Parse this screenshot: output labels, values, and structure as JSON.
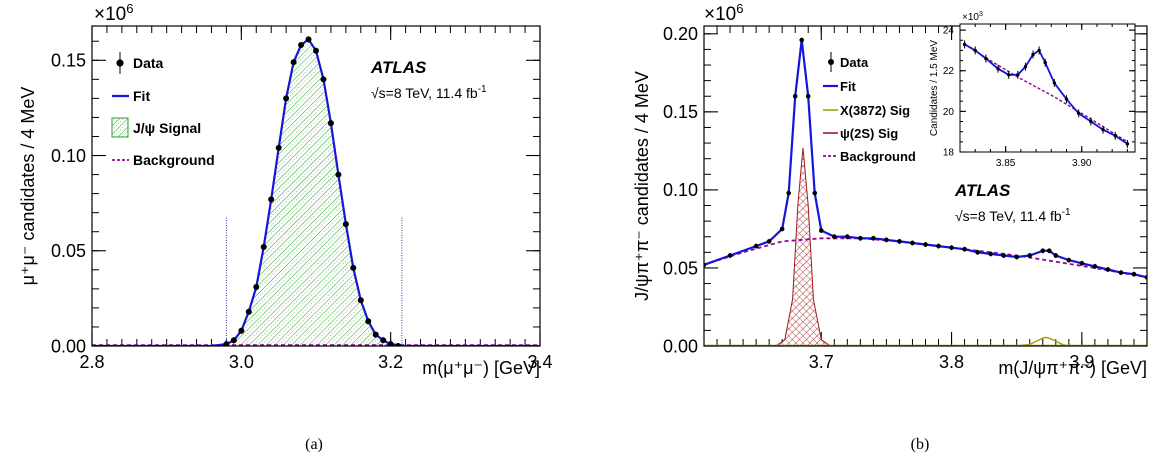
{
  "figure": {
    "panels": [
      {
        "caption": "(a)",
        "exponent_label": "×10",
        "exponent_power": "6",
        "ylabel": "μ⁺μ⁻ candidates / 4 MeV",
        "xlabel": "m(μ⁺μ⁻) [GeV]",
        "atlas": "ATLAS",
        "lumi": "√s=8 TeV, 11.4 fb",
        "lumi_power": "-1",
        "legend": [
          "Data",
          "Fit",
          "J/ψ Signal",
          "Background"
        ]
      },
      {
        "caption": "(b)",
        "exponent_label": "×10",
        "exponent_power": "6",
        "ylabel": "J/ψπ⁺π⁻ candidates / 4 MeV",
        "xlabel": "m(J/ψπ⁺π⁻) [GeV]",
        "atlas": "ATLAS",
        "lumi": "√s=8 TeV, 11.4 fb",
        "lumi_power": "-1",
        "legend": [
          "Data",
          "Fit",
          "X(3872) Sig",
          "ψ(2S) Sig",
          "Background"
        ],
        "inset": {
          "exponent_label": "×10",
          "exponent_power": "3",
          "ylabel": "Candidates / 1.5 MeV",
          "xticks": [
            "3.85",
            "3.90"
          ],
          "yticks": [
            "18",
            "20",
            "22",
            "24"
          ]
        }
      }
    ]
  },
  "colors": {
    "fit": "#1515d9",
    "data": "#000000",
    "signal_jpsi": "#2e9e2e",
    "signal_psi2s": "#a01b1b",
    "signal_x3872": "#a3a300",
    "background": "#990099"
  },
  "chart_data": [
    {
      "type": "line",
      "title": "",
      "xlabel": "m(μ⁺μ⁻) [GeV]",
      "ylabel": "μ⁺μ⁻ candidates / 4 MeV",
      "y_scale_factor": 1000000,
      "xlim": [
        2.8,
        3.4
      ],
      "ylim": [
        0,
        0.168
      ],
      "xticks": [
        "2.8",
        "3.0",
        "3.2",
        "3.4"
      ],
      "yticks": [
        "0.00",
        "0.05",
        "0.10",
        "0.15"
      ],
      "signal_window": [
        2.98,
        3.215
      ],
      "signal_window_line_height": 0.068,
      "series": [
        {
          "name": "Data",
          "x": [
            2.98,
            2.99,
            3.0,
            3.01,
            3.02,
            3.03,
            3.04,
            3.05,
            3.06,
            3.07,
            3.08,
            3.09,
            3.1,
            3.11,
            3.12,
            3.13,
            3.14,
            3.15,
            3.16,
            3.17,
            3.18,
            3.19,
            3.2,
            3.21
          ],
          "y": [
            0.001,
            0.003,
            0.008,
            0.018,
            0.031,
            0.052,
            0.077,
            0.104,
            0.13,
            0.149,
            0.158,
            0.161,
            0.155,
            0.14,
            0.117,
            0.09,
            0.064,
            0.041,
            0.024,
            0.013,
            0.006,
            0.003,
            0.001,
            0.0
          ]
        },
        {
          "name": "Fit",
          "x": [
            2.8,
            2.96,
            2.98,
            2.99,
            3.0,
            3.01,
            3.02,
            3.03,
            3.04,
            3.05,
            3.06,
            3.07,
            3.08,
            3.09,
            3.1,
            3.11,
            3.12,
            3.13,
            3.14,
            3.15,
            3.16,
            3.17,
            3.18,
            3.19,
            3.2,
            3.22,
            3.4
          ],
          "y": [
            0.0,
            0.0,
            0.001,
            0.003,
            0.008,
            0.018,
            0.031,
            0.052,
            0.077,
            0.104,
            0.13,
            0.149,
            0.158,
            0.161,
            0.155,
            0.14,
            0.117,
            0.09,
            0.064,
            0.041,
            0.024,
            0.013,
            0.006,
            0.003,
            0.001,
            0.0,
            0.0
          ]
        },
        {
          "name": "J/ψ Signal",
          "x": [
            2.98,
            2.99,
            3.0,
            3.01,
            3.02,
            3.03,
            3.04,
            3.05,
            3.06,
            3.07,
            3.08,
            3.09,
            3.1,
            3.11,
            3.12,
            3.13,
            3.14,
            3.15,
            3.16,
            3.17,
            3.18,
            3.19,
            3.2,
            3.21
          ],
          "y": [
            0.001,
            0.003,
            0.008,
            0.018,
            0.031,
            0.052,
            0.077,
            0.104,
            0.13,
            0.149,
            0.158,
            0.161,
            0.155,
            0.14,
            0.117,
            0.09,
            0.064,
            0.041,
            0.024,
            0.013,
            0.006,
            0.003,
            0.001,
            0.0
          ]
        },
        {
          "name": "Background",
          "x": [
            2.8,
            3.4
          ],
          "y": [
            0.0,
            0.0
          ]
        }
      ]
    },
    {
      "type": "line",
      "title": "",
      "xlabel": "m(J/ψπ⁺π⁻) [GeV]",
      "ylabel": "J/ψπ⁺π⁻ candidates / 4 MeV",
      "y_scale_factor": 1000000,
      "xlim": [
        3.61,
        3.95
      ],
      "ylim": [
        0,
        0.205
      ],
      "xticks": [
        "3.7",
        "3.8",
        "3.9"
      ],
      "yticks": [
        "0.00",
        "0.05",
        "0.10",
        "0.15",
        "0.20"
      ],
      "series": [
        {
          "name": "Data",
          "x": [
            3.61,
            3.63,
            3.65,
            3.66,
            3.67,
            3.675,
            3.68,
            3.685,
            3.69,
            3.695,
            3.7,
            3.71,
            3.72,
            3.73,
            3.74,
            3.75,
            3.76,
            3.77,
            3.78,
            3.79,
            3.8,
            3.81,
            3.82,
            3.83,
            3.84,
            3.85,
            3.86,
            3.87,
            3.875,
            3.88,
            3.89,
            3.9,
            3.91,
            3.92,
            3.93,
            3.94,
            3.95
          ],
          "y": [
            0.052,
            0.058,
            0.064,
            0.067,
            0.075,
            0.098,
            0.16,
            0.196,
            0.16,
            0.098,
            0.074,
            0.07,
            0.07,
            0.069,
            0.069,
            0.068,
            0.067,
            0.066,
            0.065,
            0.064,
            0.063,
            0.062,
            0.06,
            0.059,
            0.058,
            0.057,
            0.058,
            0.061,
            0.061,
            0.058,
            0.055,
            0.053,
            0.051,
            0.049,
            0.047,
            0.046,
            0.044
          ]
        },
        {
          "name": "Fit",
          "x": [
            3.61,
            3.63,
            3.65,
            3.66,
            3.67,
            3.675,
            3.68,
            3.685,
            3.69,
            3.695,
            3.7,
            3.71,
            3.72,
            3.73,
            3.74,
            3.75,
            3.76,
            3.77,
            3.78,
            3.79,
            3.8,
            3.81,
            3.82,
            3.83,
            3.84,
            3.85,
            3.86,
            3.87,
            3.875,
            3.88,
            3.89,
            3.9,
            3.91,
            3.92,
            3.93,
            3.94,
            3.95
          ],
          "y": [
            0.052,
            0.058,
            0.064,
            0.067,
            0.075,
            0.098,
            0.16,
            0.196,
            0.16,
            0.098,
            0.074,
            0.07,
            0.07,
            0.069,
            0.069,
            0.068,
            0.067,
            0.066,
            0.065,
            0.064,
            0.063,
            0.062,
            0.06,
            0.059,
            0.058,
            0.057,
            0.058,
            0.061,
            0.061,
            0.058,
            0.055,
            0.053,
            0.051,
            0.049,
            0.047,
            0.046,
            0.044
          ]
        },
        {
          "name": "X(3872) Sig",
          "x": [
            3.85,
            3.86,
            3.865,
            3.87,
            3.872,
            3.875,
            3.88,
            3.885,
            3.89
          ],
          "y": [
            0.0,
            0.001,
            0.003,
            0.005,
            0.0055,
            0.005,
            0.003,
            0.001,
            0.0
          ]
        },
        {
          "name": "ψ(2S) Sig",
          "x": [
            3.665,
            3.672,
            3.678,
            3.682,
            3.686,
            3.69,
            3.694,
            3.7,
            3.707
          ],
          "y": [
            0.0,
            0.004,
            0.03,
            0.09,
            0.127,
            0.09,
            0.03,
            0.004,
            0.0
          ]
        },
        {
          "name": "Background",
          "x": [
            3.61,
            3.64,
            3.67,
            3.7,
            3.73,
            3.76,
            3.79,
            3.82,
            3.85,
            3.88,
            3.91,
            3.95
          ],
          "y": [
            0.052,
            0.06,
            0.067,
            0.069,
            0.069,
            0.067,
            0.064,
            0.061,
            0.058,
            0.054,
            0.05,
            0.044
          ]
        }
      ],
      "inset": {
        "type": "line",
        "xlim": [
          3.82,
          3.935
        ],
        "ylim": [
          18,
          24.3
        ],
        "y_scale_factor": 1000,
        "series": [
          {
            "name": "Data",
            "x": [
              3.823,
              3.83,
              3.837,
              3.845,
              3.852,
              3.858,
              3.863,
              3.868,
              3.872,
              3.876,
              3.882,
              3.89,
              3.898,
              3.906,
              3.914,
              3.922,
              3.93
            ],
            "y": [
              23.3,
              23.0,
              22.6,
              22.1,
              21.8,
              21.8,
              22.2,
              22.8,
              23.0,
              22.4,
              21.4,
              20.6,
              19.9,
              19.5,
              19.1,
              18.8,
              18.4
            ]
          },
          {
            "name": "Fit",
            "x": [
              3.823,
              3.83,
              3.837,
              3.845,
              3.852,
              3.858,
              3.863,
              3.868,
              3.872,
              3.876,
              3.882,
              3.89,
              3.898,
              3.906,
              3.914,
              3.922,
              3.93
            ],
            "y": [
              23.3,
              23.0,
              22.6,
              22.1,
              21.8,
              21.8,
              22.2,
              22.8,
              23.0,
              22.4,
              21.4,
              20.6,
              19.9,
              19.5,
              19.1,
              18.8,
              18.4
            ]
          },
          {
            "name": "Background",
            "x": [
              3.823,
              3.84,
              3.86,
              3.88,
              3.9,
              3.915,
              3.93
            ],
            "y": [
              23.3,
              22.5,
              21.6,
              20.8,
              19.9,
              19.2,
              18.5
            ]
          }
        ]
      }
    }
  ]
}
